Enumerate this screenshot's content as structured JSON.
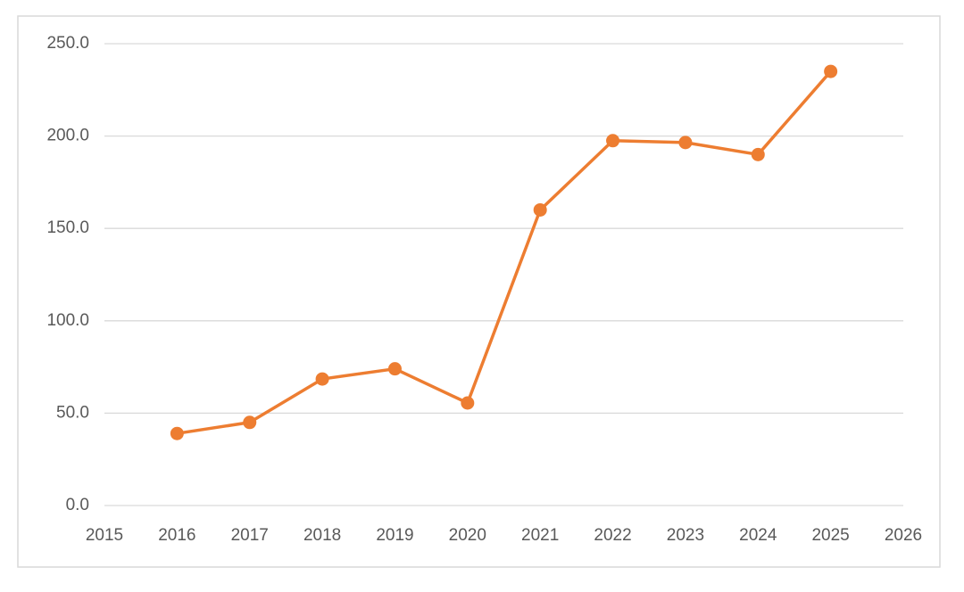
{
  "chart_data": {
    "type": "line",
    "x": [
      2016,
      2017,
      2018,
      2019,
      2020,
      2021,
      2022,
      2023,
      2024,
      2025
    ],
    "series": [
      {
        "color": "#ed7d31",
        "values": [
          39,
          45,
          68.5,
          74,
          55.5,
          160,
          197.5,
          196.5,
          190,
          235
        ]
      }
    ],
    "xlim": [
      2015,
      2026
    ],
    "xticks": [
      2015,
      2016,
      2017,
      2018,
      2019,
      2020,
      2021,
      2022,
      2023,
      2024,
      2025,
      2026
    ],
    "ylim": [
      0,
      250
    ],
    "yticks": [
      {
        "value": 0,
        "label": "0.0"
      },
      {
        "value": 50,
        "label": "50.0"
      },
      {
        "value": 100,
        "label": "100.0"
      },
      {
        "value": 150,
        "label": "150.0"
      },
      {
        "value": 200,
        "label": "200.0"
      },
      {
        "value": 250,
        "label": "250.0"
      }
    ],
    "grid": true
  }
}
